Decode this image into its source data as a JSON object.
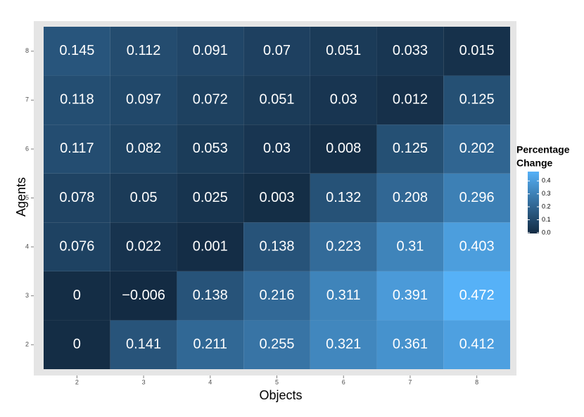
{
  "chart_data": {
    "type": "heatmap",
    "x_label": "Objects",
    "y_label": "Agents",
    "x": [
      2,
      3,
      4,
      5,
      6,
      7,
      8
    ],
    "y": [
      2,
      3,
      4,
      5,
      6,
      7,
      8
    ],
    "values": [
      [
        0,
        0.141,
        0.211,
        0.255,
        0.321,
        0.361,
        0.412
      ],
      [
        0,
        -0.006,
        0.138,
        0.216,
        0.311,
        0.391,
        0.472
      ],
      [
        0.076,
        0.022,
        0.001,
        0.138,
        0.223,
        0.31,
        0.403
      ],
      [
        0.078,
        0.05,
        0.025,
        0.003,
        0.132,
        0.208,
        0.296
      ],
      [
        0.117,
        0.082,
        0.053,
        0.03,
        0.008,
        0.125,
        0.202
      ],
      [
        0.118,
        0.097,
        0.072,
        0.051,
        0.03,
        0.012,
        0.125
      ],
      [
        0.145,
        0.112,
        0.091,
        0.07,
        0.051,
        0.033,
        0.015
      ]
    ],
    "value_labels": [
      [
        "0",
        "0.141",
        "0.211",
        "0.255",
        "0.321",
        "0.361",
        "0.412"
      ],
      [
        "0",
        "−0.006",
        "0.138",
        "0.216",
        "0.311",
        "0.391",
        "0.472"
      ],
      [
        "0.076",
        "0.022",
        "0.001",
        "0.138",
        "0.223",
        "0.31",
        "0.403"
      ],
      [
        "0.078",
        "0.05",
        "0.025",
        "0.003",
        "0.132",
        "0.208",
        "0.296"
      ],
      [
        "0.117",
        "0.082",
        "0.053",
        "0.03",
        "0.008",
        "0.125",
        "0.202"
      ],
      [
        "0.118",
        "0.097",
        "0.072",
        "0.051",
        "0.03",
        "0.012",
        "0.125"
      ],
      [
        "0.145",
        "0.112",
        "0.091",
        "0.07",
        "0.051",
        "0.033",
        "0.015"
      ]
    ],
    "legend_title": [
      "Percentage",
      "Change"
    ],
    "color_range": [
      "#132b43",
      "#56b1f7"
    ],
    "clim": [
      -0.006,
      0.472
    ],
    "cticks": [
      {
        "value": 0,
        "label": "0.0"
      },
      0.1,
      0.2,
      0.3,
      0.4
    ]
  }
}
